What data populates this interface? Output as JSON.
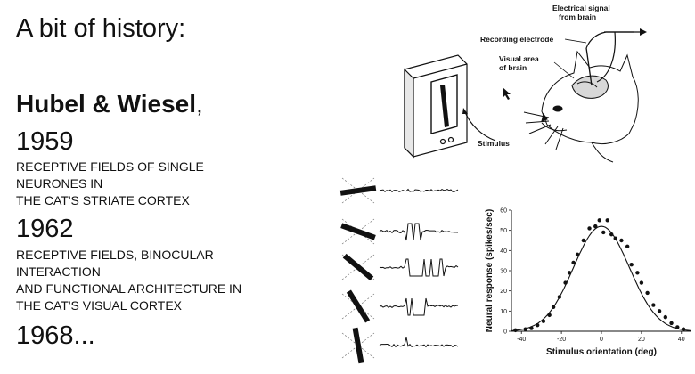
{
  "slide": {
    "heading": "A bit of history:",
    "authors": "Hubel & Wiesel",
    "authors_suffix": ",",
    "entries": [
      {
        "year": "1959",
        "title_lines": [
          "RECEPTIVE FIELDS OF SINGLE",
          "NEURONES IN",
          "THE CAT'S STRIATE CORTEX"
        ]
      },
      {
        "year": "1962",
        "title_lines": [
          "RECEPTIVE FIELDS, BINOCULAR",
          "INTERACTION",
          "AND FUNCTIONAL ARCHITECTURE IN",
          "THE CAT'S VISUAL CORTEX"
        ]
      },
      {
        "year": "1968..."
      }
    ]
  },
  "diagram": {
    "labels": {
      "signal_line1": "Electrical signal",
      "signal_line2": "from brain",
      "electrode": "Recording electrode",
      "visual_line1": "Visual area",
      "visual_line2": "of brain",
      "stimulus": "Stimulus"
    }
  },
  "chart_data": {
    "type": "scatter",
    "xlabel": "Stimulus orientation (deg)",
    "ylabel": "Neural response (spikes/sec)",
    "xlim": [
      -45,
      45
    ],
    "ylim": [
      0,
      60
    ],
    "xticks": [
      -40,
      -20,
      0,
      20,
      40
    ],
    "yticks": [
      0,
      10,
      20,
      30,
      40,
      50,
      60
    ],
    "points": [
      [
        -43,
        0.5
      ],
      [
        -38,
        1
      ],
      [
        -35,
        1.5
      ],
      [
        -32,
        3
      ],
      [
        -29,
        5
      ],
      [
        -26,
        8
      ],
      [
        -24,
        12
      ],
      [
        -21,
        17
      ],
      [
        -18,
        24
      ],
      [
        -16,
        29
      ],
      [
        -14,
        34
      ],
      [
        -12,
        38
      ],
      [
        -9,
        45
      ],
      [
        -6,
        51
      ],
      [
        -3,
        52
      ],
      [
        -1,
        55
      ],
      [
        1,
        49
      ],
      [
        3,
        55
      ],
      [
        5,
        48
      ],
      [
        7,
        46
      ],
      [
        10,
        45
      ],
      [
        13,
        42
      ],
      [
        15,
        33
      ],
      [
        18,
        29
      ],
      [
        20,
        24
      ],
      [
        23,
        19
      ],
      [
        26,
        13
      ],
      [
        29,
        10
      ],
      [
        32,
        7
      ],
      [
        35,
        4
      ],
      [
        38,
        2
      ],
      [
        41,
        1
      ]
    ],
    "fit": {
      "shape": "gaussian",
      "peak": 52,
      "center": 0,
      "sigma": 14
    }
  }
}
